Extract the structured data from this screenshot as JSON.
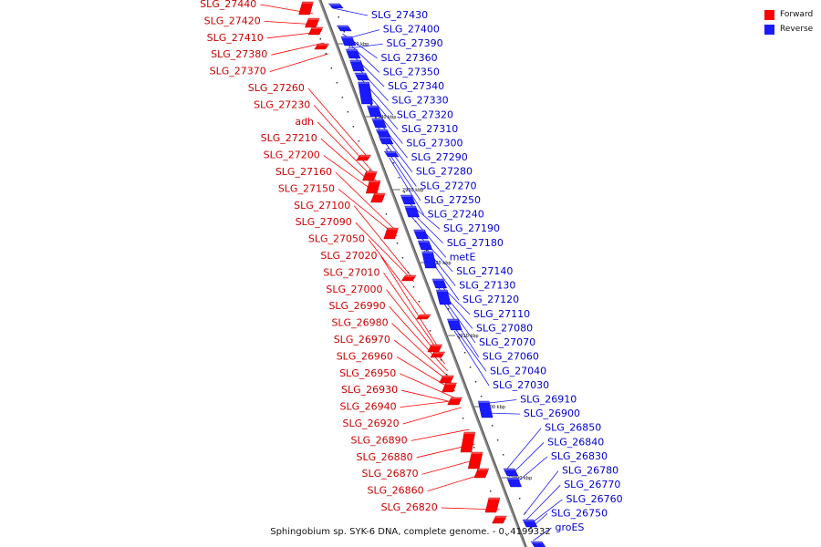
{
  "colors": {
    "forward": "#ff0000",
    "reverse": "#1a1aff",
    "forward_text": "#cc0000",
    "reverse_text": "#0000cc",
    "backbone": "#888888"
  },
  "legend": {
    "forward_label": "Forward",
    "reverse_label": "Reverse"
  },
  "caption": "Sphingobium sp. SYK-6 DNA, complete genome. - 0..4199332",
  "forward_genes": [
    {
      "name": "SLG_27440",
      "anchor": 12
    },
    {
      "name": "SLG_27420",
      "anchor": 24
    },
    {
      "name": "SLG_27410",
      "anchor": 32
    },
    {
      "name": "SLG_27380",
      "anchor": 44
    },
    {
      "name": "SLG_27370",
      "anchor": 56
    },
    {
      "name": "SLG_27260",
      "anchor": 168
    },
    {
      "name": "SLG_27230",
      "anchor": 185
    },
    {
      "name": "adh",
      "anchor": 195
    },
    {
      "name": "SLG_27210",
      "anchor": 205
    },
    {
      "name": "SLG_27200",
      "anchor": 213
    },
    {
      "name": "SLG_27160",
      "anchor": 248
    },
    {
      "name": "SLG_27150",
      "anchor": 256
    },
    {
      "name": "SLG_27100",
      "anchor": 302
    },
    {
      "name": "SLG_27090",
      "anchor": 306
    },
    {
      "name": "SLG_27050",
      "anchor": 344
    },
    {
      "name": "SLG_27020",
      "anchor": 380
    },
    {
      "name": "SLG_27010",
      "anchor": 388
    },
    {
      "name": "SLG_27000",
      "anchor": 396
    },
    {
      "name": "SLG_26990",
      "anchor": 404
    },
    {
      "name": "SLG_26980",
      "anchor": 412
    },
    {
      "name": "SLG_26970",
      "anchor": 418
    },
    {
      "name": "SLG_26960",
      "anchor": 426
    },
    {
      "name": "SLG_26950",
      "anchor": 435
    },
    {
      "name": "SLG_26930",
      "anchor": 440
    },
    {
      "name": "SLG_26940",
      "anchor": 436
    },
    {
      "name": "SLG_26920",
      "anchor": 444
    },
    {
      "name": "SLG_26890",
      "anchor": 468
    },
    {
      "name": "SLG_26880",
      "anchor": 484
    },
    {
      "name": "SLG_26870",
      "anchor": 500
    },
    {
      "name": "SLG_26860",
      "anchor": 516
    },
    {
      "name": "SLG_26820",
      "anchor": 556
    }
  ],
  "reverse_genes": [
    {
      "name": "SLG_27430",
      "anchor": 6
    },
    {
      "name": "SLG_27400",
      "anchor": 40
    },
    {
      "name": "SLG_27390",
      "anchor": 50
    },
    {
      "name": "SLG_27360",
      "anchor": 34
    },
    {
      "name": "SLG_27350",
      "anchor": 40
    },
    {
      "name": "SLG_27340",
      "anchor": 54
    },
    {
      "name": "SLG_27330",
      "anchor": 66
    },
    {
      "name": "SLG_27320",
      "anchor": 80
    },
    {
      "name": "SLG_27310",
      "anchor": 94
    },
    {
      "name": "SLG_27300",
      "anchor": 108
    },
    {
      "name": "SLG_27290",
      "anchor": 122
    },
    {
      "name": "SLG_27280",
      "anchor": 136
    },
    {
      "name": "SLG_27270",
      "anchor": 148
    },
    {
      "name": "SLG_27250",
      "anchor": 160
    },
    {
      "name": "SLG_27240",
      "anchor": 170
    },
    {
      "name": "SLG_27190",
      "anchor": 216
    },
    {
      "name": "SLG_27180",
      "anchor": 226
    },
    {
      "name": "metE",
      "anchor": 234
    },
    {
      "name": "SLG_27140",
      "anchor": 254
    },
    {
      "name": "SLG_27130",
      "anchor": 262
    },
    {
      "name": "SLG_27120",
      "anchor": 272
    },
    {
      "name": "SLG_27110",
      "anchor": 304
    },
    {
      "name": "SLG_27080",
      "anchor": 312
    },
    {
      "name": "SLG_27070",
      "anchor": 320
    },
    {
      "name": "SLG_27060",
      "anchor": 330
    },
    {
      "name": "SLG_27040",
      "anchor": 352
    },
    {
      "name": "SLG_27030",
      "anchor": 360
    },
    {
      "name": "SLG_26910",
      "anchor": 440
    },
    {
      "name": "SLG_26900",
      "anchor": 450
    },
    {
      "name": "SLG_26850",
      "anchor": 512
    },
    {
      "name": "SLG_26840",
      "anchor": 520
    },
    {
      "name": "SLG_26830",
      "anchor": 530
    },
    {
      "name": "SLG_26780",
      "anchor": 562
    },
    {
      "name": "SLG_26770",
      "anchor": 568
    },
    {
      "name": "SLG_26760",
      "anchor": 574
    },
    {
      "name": "SLG_26750",
      "anchor": 578
    },
    {
      "name": "groES",
      "anchor": 590
    }
  ],
  "scale_ticks": [
    {
      "label": "2950 kbp",
      "anchor": 48
    },
    {
      "label": "2940 kbp",
      "anchor": 128
    },
    {
      "label": "2930 kbp",
      "anchor": 208
    },
    {
      "label": "2920 kbp",
      "anchor": 288
    },
    {
      "label": "2910 kbp",
      "anchor": 368
    },
    {
      "label": "2900 kbp",
      "anchor": 446
    },
    {
      "label": "2890 kbp",
      "anchor": 524
    }
  ],
  "forward_features": [
    {
      "y": 2,
      "len": 14
    },
    {
      "y": 20,
      "len": 10
    },
    {
      "y": 30,
      "len": 8
    },
    {
      "y": 48,
      "len": 6
    },
    {
      "y": 170,
      "len": 6
    },
    {
      "y": 188,
      "len": 10
    },
    {
      "y": 198,
      "len": 14
    },
    {
      "y": 212,
      "len": 10
    },
    {
      "y": 250,
      "len": 12
    },
    {
      "y": 302,
      "len": 6
    },
    {
      "y": 345,
      "len": 5
    },
    {
      "y": 378,
      "len": 8
    },
    {
      "y": 386,
      "len": 6
    },
    {
      "y": 412,
      "len": 8
    },
    {
      "y": 420,
      "len": 10
    },
    {
      "y": 436,
      "len": 8
    },
    {
      "y": 474,
      "len": 22
    },
    {
      "y": 496,
      "len": 18
    },
    {
      "y": 514,
      "len": 10
    },
    {
      "y": 546,
      "len": 16
    },
    {
      "y": 566,
      "len": 8
    }
  ],
  "reverse_features": [
    {
      "y": 4,
      "len": 5
    },
    {
      "y": 28,
      "len": 6
    },
    {
      "y": 40,
      "len": 10
    },
    {
      "y": 54,
      "len": 10
    },
    {
      "y": 66,
      "len": 12
    },
    {
      "y": 80,
      "len": 8
    },
    {
      "y": 90,
      "len": 24
    },
    {
      "y": 116,
      "len": 12
    },
    {
      "y": 130,
      "len": 10
    },
    {
      "y": 142,
      "len": 8
    },
    {
      "y": 150,
      "len": 8
    },
    {
      "y": 166,
      "len": 6
    },
    {
      "y": 214,
      "len": 10
    },
    {
      "y": 226,
      "len": 12
    },
    {
      "y": 252,
      "len": 10
    },
    {
      "y": 264,
      "len": 10
    },
    {
      "y": 276,
      "len": 18
    },
    {
      "y": 306,
      "len": 10
    },
    {
      "y": 318,
      "len": 16
    },
    {
      "y": 350,
      "len": 12
    },
    {
      "y": 440,
      "len": 18
    },
    {
      "y": 514,
      "len": 8
    },
    {
      "y": 524,
      "len": 10
    },
    {
      "y": 570,
      "len": 8
    },
    {
      "y": 594,
      "len": 6
    }
  ]
}
